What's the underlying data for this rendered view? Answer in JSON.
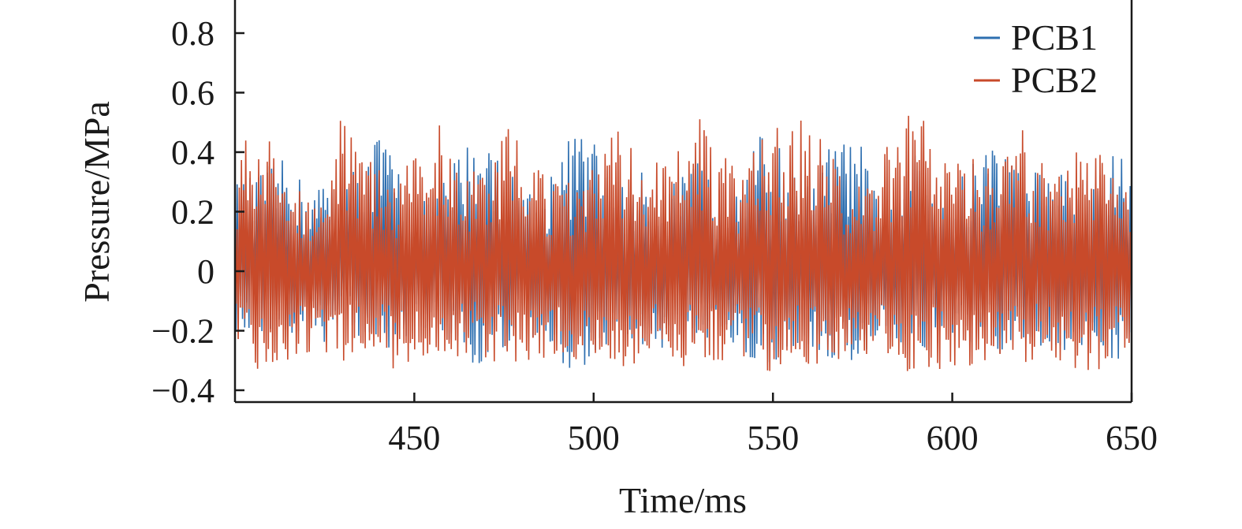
{
  "chart_data": {
    "type": "line",
    "xlabel": "Time/ms",
    "ylabel": "Pressure/MPa",
    "xlim": [
      400,
      650
    ],
    "ylim": [
      -0.45,
      0.9
    ],
    "x_ticks": [
      450,
      500,
      550,
      600,
      650
    ],
    "x_tick_labels": [
      "450",
      "500",
      "550",
      "600",
      "650"
    ],
    "y_ticks": [
      0.8,
      0.6,
      0.4,
      0.2,
      0,
      -0.2,
      -0.4
    ],
    "y_tick_labels": [
      "0.8",
      "0.6",
      "0.4",
      "0.2",
      "0",
      "−0.2",
      "−0.4"
    ],
    "grid": false,
    "legend_position": "top-right",
    "series": [
      {
        "name": "PCB1",
        "color": "#2e6fb0",
        "oscillation_period_ms": 0.6,
        "envelope": {
          "x": [
            400,
            405,
            410,
            415,
            420,
            425,
            430,
            435,
            440,
            445,
            450,
            455,
            460,
            465,
            470,
            475,
            480,
            485,
            490,
            495,
            500,
            505,
            510,
            515,
            520,
            525,
            530,
            535,
            540,
            545,
            550,
            555,
            560,
            565,
            570,
            575,
            580,
            585,
            590,
            595,
            600,
            605,
            610,
            615,
            620,
            625,
            630,
            635,
            640,
            645,
            650
          ],
          "upper": [
            0.3,
            0.32,
            0.36,
            0.38,
            0.28,
            0.3,
            0.35,
            0.35,
            0.48,
            0.38,
            0.22,
            0.25,
            0.36,
            0.45,
            0.5,
            0.35,
            0.3,
            0.28,
            0.42,
            0.48,
            0.45,
            0.28,
            0.3,
            0.35,
            0.3,
            0.32,
            0.38,
            0.28,
            0.42,
            0.45,
            0.48,
            0.32,
            0.34,
            0.42,
            0.45,
            0.42,
            0.2,
            0.3,
            0.4,
            0.32,
            0.3,
            0.35,
            0.46,
            0.45,
            0.3,
            0.38,
            0.35,
            0.3,
            0.32,
            0.42,
            0.38
          ],
          "lower": [
            -0.22,
            -0.22,
            -0.2,
            -0.25,
            -0.26,
            -0.24,
            -0.22,
            -0.22,
            -0.28,
            -0.26,
            -0.2,
            -0.2,
            -0.25,
            -0.3,
            -0.35,
            -0.28,
            -0.24,
            -0.26,
            -0.3,
            -0.34,
            -0.32,
            -0.22,
            -0.24,
            -0.28,
            -0.26,
            -0.24,
            -0.28,
            -0.24,
            -0.28,
            -0.3,
            -0.32,
            -0.28,
            -0.26,
            -0.3,
            -0.32,
            -0.3,
            -0.2,
            -0.24,
            -0.28,
            -0.26,
            -0.24,
            -0.26,
            -0.3,
            -0.3,
            -0.24,
            -0.26,
            -0.28,
            -0.26,
            -0.26,
            -0.3,
            -0.28
          ]
        }
      },
      {
        "name": "PCB2",
        "color": "#c84a2a",
        "oscillation_period_ms": 0.6,
        "envelope": {
          "x": [
            400,
            405,
            410,
            415,
            420,
            425,
            430,
            435,
            440,
            445,
            450,
            455,
            460,
            465,
            470,
            475,
            480,
            485,
            490,
            495,
            500,
            505,
            510,
            515,
            520,
            525,
            530,
            535,
            540,
            545,
            550,
            555,
            560,
            565,
            570,
            575,
            580,
            585,
            590,
            595,
            600,
            605,
            610,
            615,
            620,
            625,
            630,
            635,
            640,
            645,
            650
          ],
          "upper": [
            0.35,
            0.52,
            0.45,
            0.3,
            0.28,
            0.32,
            0.55,
            0.48,
            0.35,
            0.3,
            0.4,
            0.55,
            0.4,
            0.32,
            0.38,
            0.5,
            0.45,
            0.35,
            0.3,
            0.32,
            0.35,
            0.45,
            0.52,
            0.38,
            0.38,
            0.42,
            0.52,
            0.4,
            0.35,
            0.42,
            0.5,
            0.48,
            0.55,
            0.42,
            0.32,
            0.32,
            0.38,
            0.5,
            0.56,
            0.45,
            0.35,
            0.4,
            0.35,
            0.45,
            0.48,
            0.38,
            0.4,
            0.46,
            0.42,
            0.35,
            0.32
          ],
          "lower": [
            -0.26,
            -0.32,
            -0.35,
            -0.3,
            -0.3,
            -0.34,
            -0.32,
            -0.3,
            -0.3,
            -0.34,
            -0.3,
            -0.32,
            -0.3,
            -0.28,
            -0.3,
            -0.32,
            -0.3,
            -0.3,
            -0.28,
            -0.3,
            -0.3,
            -0.32,
            -0.32,
            -0.3,
            -0.28,
            -0.32,
            -0.3,
            -0.3,
            -0.3,
            -0.32,
            -0.34,
            -0.3,
            -0.32,
            -0.3,
            -0.3,
            -0.28,
            -0.3,
            -0.34,
            -0.35,
            -0.32,
            -0.36,
            -0.32,
            -0.3,
            -0.3,
            -0.32,
            -0.3,
            -0.32,
            -0.36,
            -0.34,
            -0.3,
            -0.26
          ]
        }
      }
    ]
  }
}
